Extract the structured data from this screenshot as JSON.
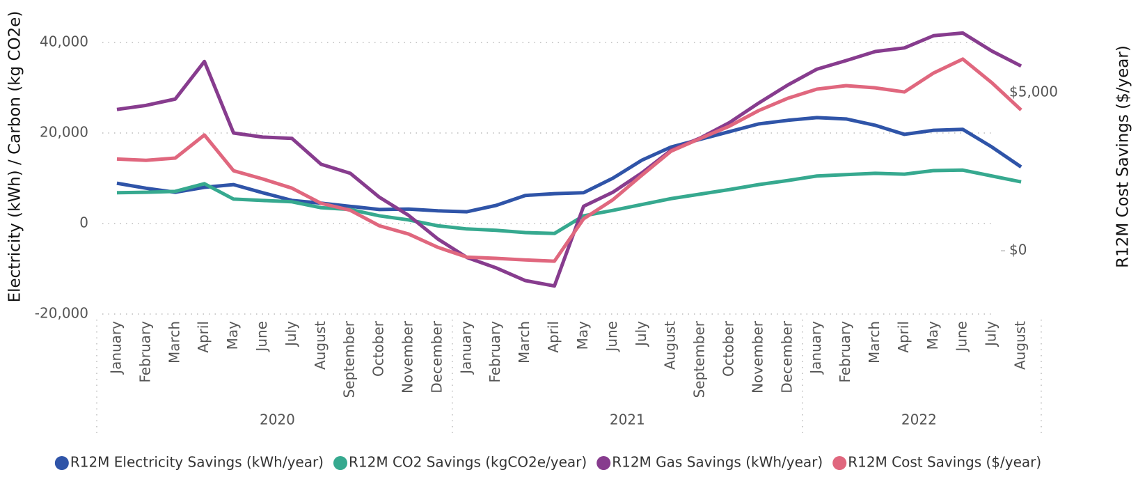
{
  "chart_data": {
    "type": "line",
    "y_label": "Electricity (kWh) / Carbon (kg CO2e)",
    "y2_label": "R12M Cost Savings ($/year)",
    "categories": [
      "January",
      "February",
      "March",
      "April",
      "May",
      "June",
      "July",
      "August",
      "September",
      "October",
      "November",
      "December",
      "January",
      "February",
      "March",
      "April",
      "May",
      "June",
      "July",
      "August",
      "September",
      "October",
      "November",
      "December",
      "January",
      "February",
      "March",
      "April",
      "May",
      "June",
      "July",
      "August"
    ],
    "groups": [
      {
        "label": "2020",
        "count": 12
      },
      {
        "label": "2021",
        "count": 12
      },
      {
        "label": "2022",
        "count": 8
      }
    ],
    "ylim": [
      -20000,
      45000
    ],
    "yticks": [
      {
        "value": -20000,
        "label": "-20,000"
      },
      0,
      {
        "value": 20000,
        "label": "20,000"
      },
      {
        "value": 40000,
        "label": "40,000"
      }
    ],
    "y2lim": [
      -2000,
      7300
    ],
    "y2ticks": [
      {
        "value": 0,
        "label": "$0"
      },
      {
        "value": 5000,
        "label": "$5,000"
      }
    ],
    "grid": true,
    "legend": "bottom",
    "series": [
      {
        "name": "R12M Electricity Savings (kWh/year)",
        "color": "#2f54a8",
        "values": [
          8900,
          7800,
          6900,
          8000,
          8600,
          6800,
          5100,
          4500,
          3800,
          3100,
          3200,
          2800,
          2600,
          4000,
          6200,
          6600,
          6800,
          10000,
          14000,
          16900,
          18600,
          20300,
          22000,
          22800,
          23400,
          23100,
          21700,
          19700,
          20600,
          20800,
          16900,
          12500
        ]
      },
      {
        "name": "R12M CO2 Savings (kgCO2e/year)",
        "color": "#36a98f",
        "values": [
          6800,
          6900,
          7100,
          8800,
          5400,
          5100,
          4800,
          3500,
          3100,
          1700,
          800,
          -500,
          -1200,
          -1500,
          -2000,
          -2200,
          1700,
          2900,
          4200,
          5500,
          6500,
          7500,
          8600,
          9500,
          10500,
          10800,
          11100,
          10900,
          11700,
          11800,
          10500,
          9200
        ]
      },
      {
        "name": "R12M Gas Savings (kWh/year)",
        "color": "#873c8e",
        "values": [
          25200,
          26100,
          27500,
          35800,
          20000,
          19100,
          18800,
          13100,
          11100,
          5800,
          1800,
          -3400,
          -7500,
          -9800,
          -12600,
          -13800,
          3800,
          6900,
          11200,
          16200,
          18900,
          22300,
          26600,
          30600,
          34100,
          36000,
          38000,
          38800,
          41500,
          42100,
          38100,
          34800
        ]
      },
      {
        "name": "R12M Cost Savings ($/year)",
        "color": "#e0677e",
        "axis": "y2",
        "values": [
          2900,
          2860,
          2930,
          3660,
          2530,
          2270,
          1980,
          1500,
          1280,
          790,
          530,
          110,
          -200,
          -240,
          -290,
          -330,
          1010,
          1610,
          2390,
          3150,
          3550,
          3940,
          4430,
          4820,
          5110,
          5220,
          5150,
          5020,
          5620,
          6060,
          5310,
          4450
        ]
      }
    ]
  }
}
